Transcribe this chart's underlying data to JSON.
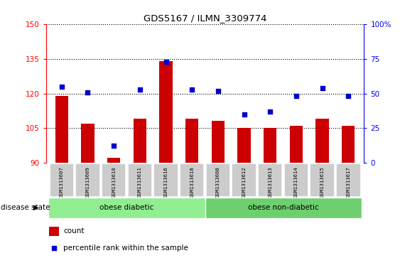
{
  "title": "GDS5167 / ILMN_3309774",
  "categories": [
    "GSM1313607",
    "GSM1313609",
    "GSM1313610",
    "GSM1313611",
    "GSM1313616",
    "GSM1313618",
    "GSM1313608",
    "GSM1313612",
    "GSM1313613",
    "GSM1313614",
    "GSM1313615",
    "GSM1313617"
  ],
  "bar_values": [
    119,
    107,
    92,
    109,
    134,
    109,
    108,
    105,
    105,
    106,
    109,
    106
  ],
  "dot_percentiles": [
    55,
    51,
    12,
    53,
    73,
    53,
    52,
    35,
    37,
    48,
    54,
    48
  ],
  "bar_color": "#cc0000",
  "dot_color": "#0000cc",
  "ylim_left": [
    90,
    150
  ],
  "ylim_right": [
    0,
    100
  ],
  "yticks_left": [
    90,
    105,
    120,
    135,
    150
  ],
  "yticks_right": [
    0,
    25,
    50,
    75,
    100
  ],
  "group1_label": "obese diabetic",
  "group2_label": "obese non-diabetic",
  "group1_count": 6,
  "group2_count": 6,
  "group1_color": "#90ee90",
  "group2_color": "#6dcf6d",
  "legend_count_label": "count",
  "legend_percentile_label": "percentile rank within the sample",
  "disease_state_label": "disease state",
  "xticklabel_bg": "#cccccc",
  "bar_width": 0.5
}
